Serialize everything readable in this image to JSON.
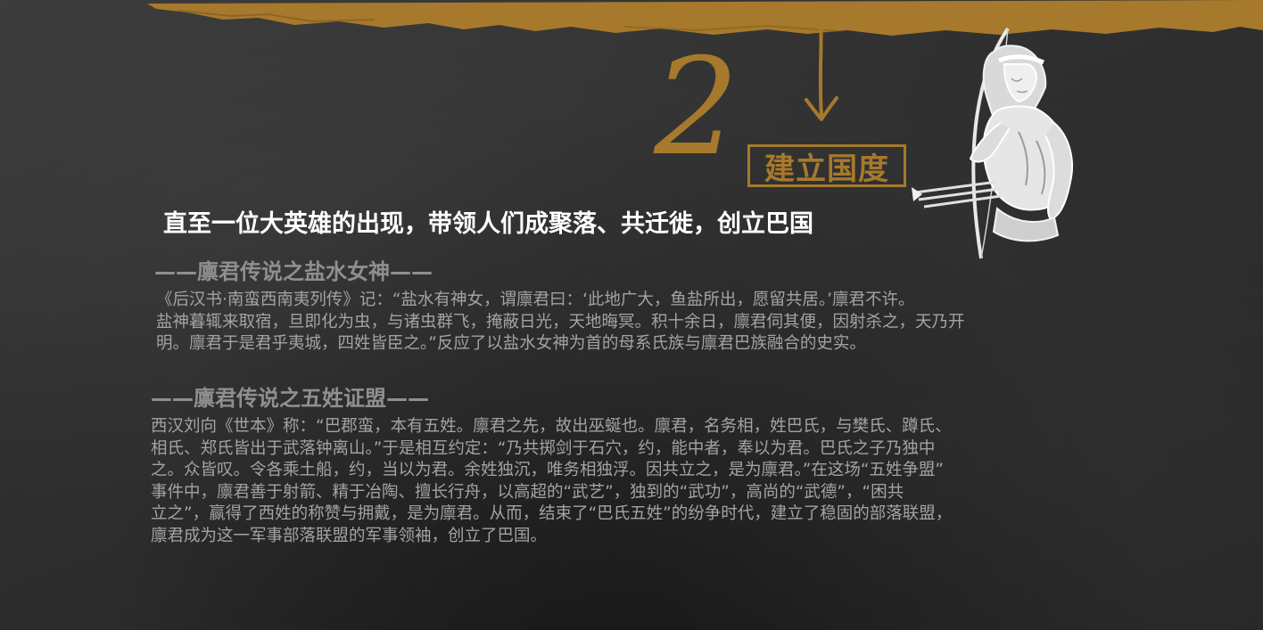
{
  "chapter": {
    "number": "2",
    "title": "建立国度"
  },
  "headline": "直至一位大英雄的出现，带领人们成聚落、共迁徙，创立巴国",
  "sections": [
    {
      "title": "——廪君传说之盐水女神——",
      "lines": [
        "《后汉书·南蛮西南夷列传》记：“盐水有神女，谓廪君曰：‘此地广大，鱼盐所出，愿留共居。’廪君不许。",
        "盐神暮辄来取宿，旦即化为虫，与诸虫群飞，掩蔽日光，天地晦冥。积十余日，廪君伺其便，因射杀之，天乃开",
        "明。廪君于是君乎夷城，四姓皆臣之。”反应了以盐水女神为首的母系氏族与廪君巴族融合的史实。"
      ]
    },
    {
      "title": "——廪君传说之五姓证盟——",
      "lines": [
        "西汉刘向《世本》称：“巴郡蛮，本有五姓。廪君之先，故出巫蜒也。廪君，名务相，姓巴氏，与樊氏、蹲氏、",
        "相氏、郑氏皆出于武落钟离山。”于是相互约定：“乃共掷剑于石穴，约，能中者，奉以为君。巴氏之子乃独中",
        "之。众皆叹。令各乘土船，约，当以为君。余姓独沉，唯务相独浮。因共立之，是为廪君。”在这场“五姓争盟”",
        "事件中，廪君善于射箭、精于冶陶、擅长行舟，以高超的“武艺”，独到的“武功”，高尚的“武德”，“困共",
        "立之”，赢得了西姓的称赞与拥戴，是为廪君。从而，结束了“巴氏五姓”的纷争时代，建立了稳固的部落联盟，",
        "廪君成为这一军事部落联盟的军事领袖，创立了巴国。"
      ]
    }
  ],
  "colors": {
    "accent": "#a6792c",
    "background": "#2f2f2f",
    "headline": "#ffffff",
    "section_title": "#8f8f8f",
    "body_text": "#a3a3a3"
  },
  "icons": {
    "banner": "brush-stroke-banner",
    "arrow": "down-arrow-icon",
    "illustration": "archer-warrior-illustration"
  }
}
